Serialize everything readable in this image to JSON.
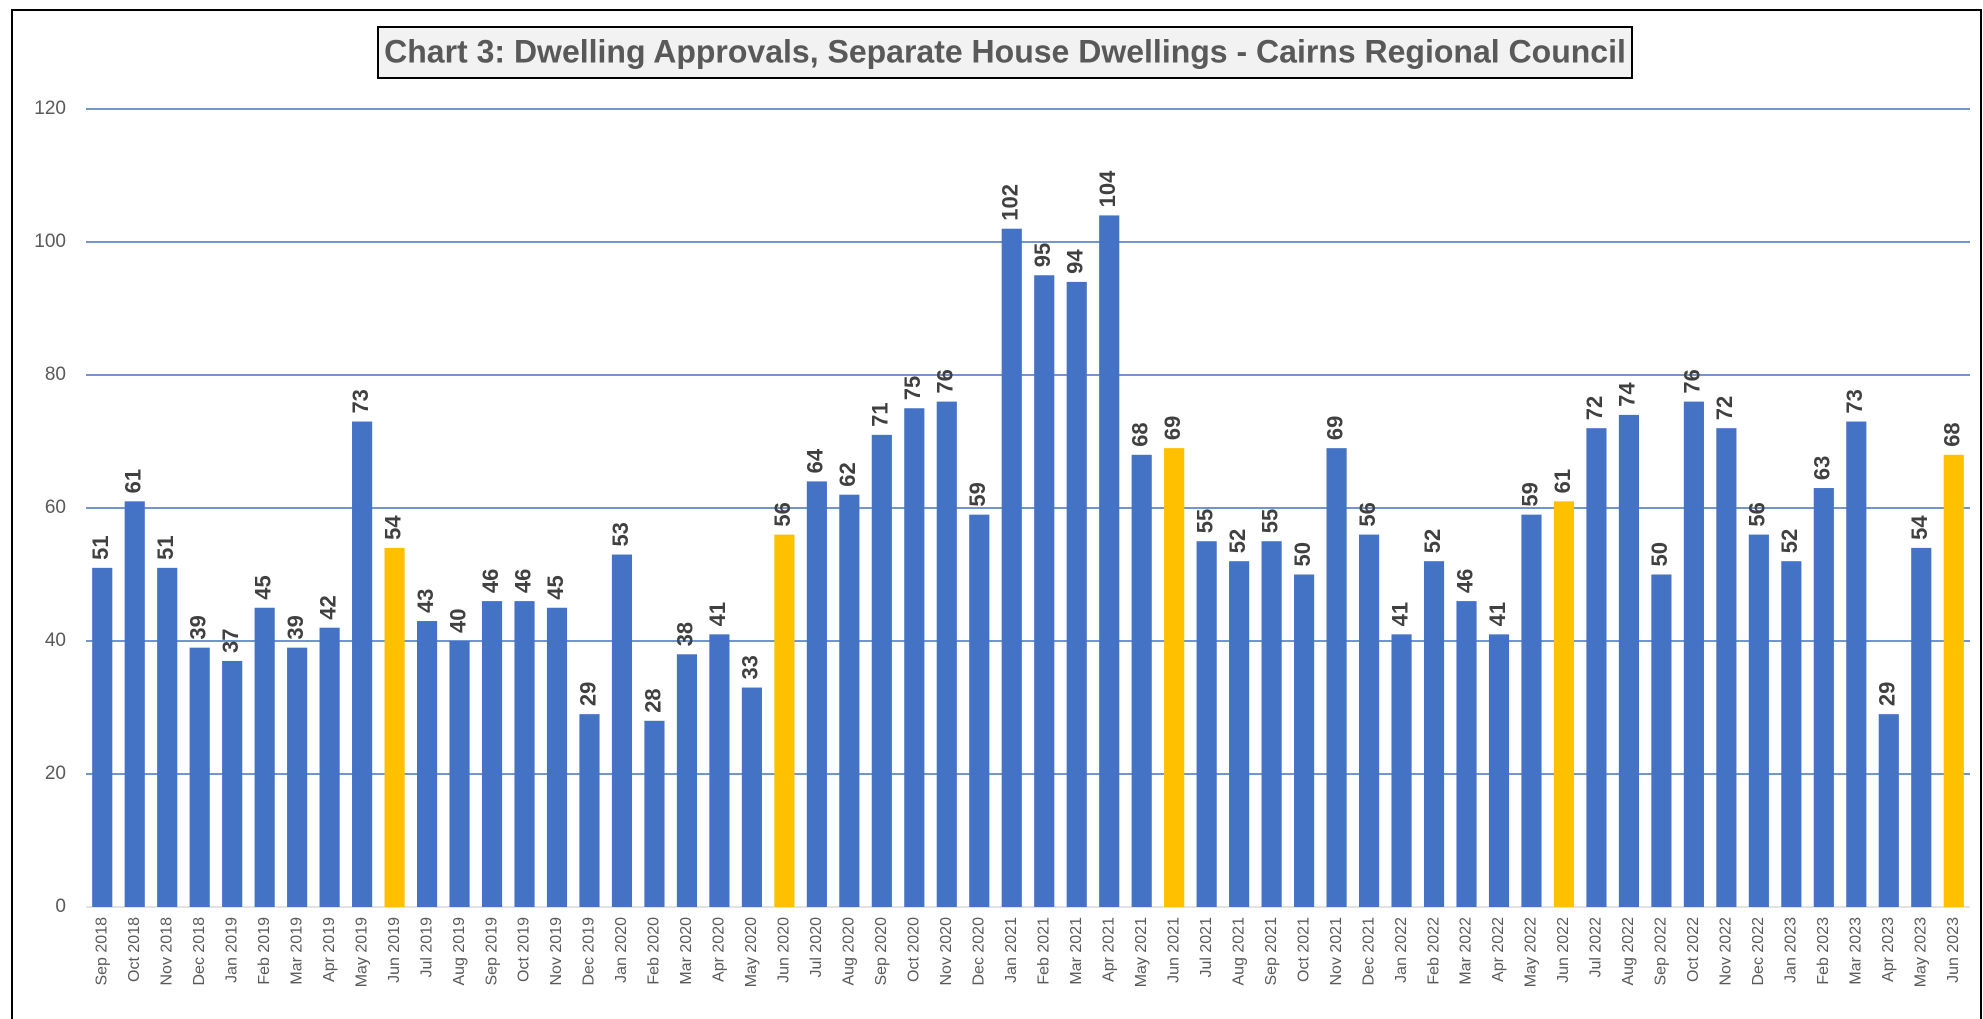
{
  "chart_data": {
    "type": "bar",
    "title": "Chart 3: Dwelling Approvals, Separate House Dwellings - Cairns Regional Council",
    "categories": [
      "Sep 2018",
      "Oct 2018",
      "Nov 2018",
      "Dec 2018",
      "Jan 2019",
      "Feb 2019",
      "Mar 2019",
      "Apr 2019",
      "May 2019",
      "Jun 2019",
      "Jul 2019",
      "Aug 2019",
      "Sep 2019",
      "Oct 2019",
      "Nov 2019",
      "Dec 2019",
      "Jan 2020",
      "Feb 2020",
      "Mar 2020",
      "Apr 2020",
      "May 2020",
      "Jun 2020",
      "Jul 2020",
      "Aug 2020",
      "Sep 2020",
      "Oct 2020",
      "Nov 2020",
      "Dec 2020",
      "Jan 2021",
      "Feb 2021",
      "Mar 2021",
      "Apr 2021",
      "May 2021",
      "Jun 2021",
      "Jul 2021",
      "Aug 2021",
      "Sep 2021",
      "Oct 2021",
      "Nov 2021",
      "Dec 2021",
      "Jan 2022",
      "Feb 2022",
      "Mar 2022",
      "Apr 2022",
      "May 2022",
      "Jun 2022",
      "Jul 2022",
      "Aug 2022",
      "Sep 2022",
      "Oct 2022",
      "Nov 2022",
      "Dec 2022",
      "Jan 2023",
      "Feb 2023",
      "Mar 2023",
      "Apr 2023",
      "May 2023",
      "Jun 2023"
    ],
    "values": [
      51,
      61,
      51,
      39,
      37,
      45,
      39,
      42,
      73,
      54,
      43,
      40,
      46,
      46,
      45,
      29,
      53,
      28,
      38,
      41,
      33,
      56,
      64,
      62,
      71,
      75,
      76,
      59,
      102,
      95,
      94,
      104,
      68,
      69,
      55,
      52,
      55,
      50,
      69,
      56,
      41,
      52,
      46,
      41,
      59,
      61,
      72,
      74,
      50,
      76,
      72,
      56,
      52,
      63,
      73,
      29,
      54,
      68
    ],
    "colors": [
      "#4472c4",
      "#4472c4",
      "#4472c4",
      "#4472c4",
      "#4472c4",
      "#4472c4",
      "#4472c4",
      "#4472c4",
      "#4472c4",
      "#ffc000",
      "#4472c4",
      "#4472c4",
      "#4472c4",
      "#4472c4",
      "#4472c4",
      "#4472c4",
      "#4472c4",
      "#4472c4",
      "#4472c4",
      "#4472c4",
      "#4472c4",
      "#ffc000",
      "#4472c4",
      "#4472c4",
      "#4472c4",
      "#4472c4",
      "#4472c4",
      "#4472c4",
      "#4472c4",
      "#4472c4",
      "#4472c4",
      "#4472c4",
      "#4472c4",
      "#ffc000",
      "#4472c4",
      "#4472c4",
      "#4472c4",
      "#4472c4",
      "#4472c4",
      "#4472c4",
      "#4472c4",
      "#4472c4",
      "#4472c4",
      "#4472c4",
      "#4472c4",
      "#ffc000",
      "#4472c4",
      "#4472c4",
      "#4472c4",
      "#4472c4",
      "#4472c4",
      "#4472c4",
      "#4472c4",
      "#4472c4",
      "#4472c4",
      "#4472c4",
      "#4472c4",
      "#ffc000"
    ],
    "ylim": [
      0,
      120
    ],
    "yticks": [
      0,
      20,
      40,
      60,
      80,
      100,
      120
    ],
    "grid": true
  }
}
